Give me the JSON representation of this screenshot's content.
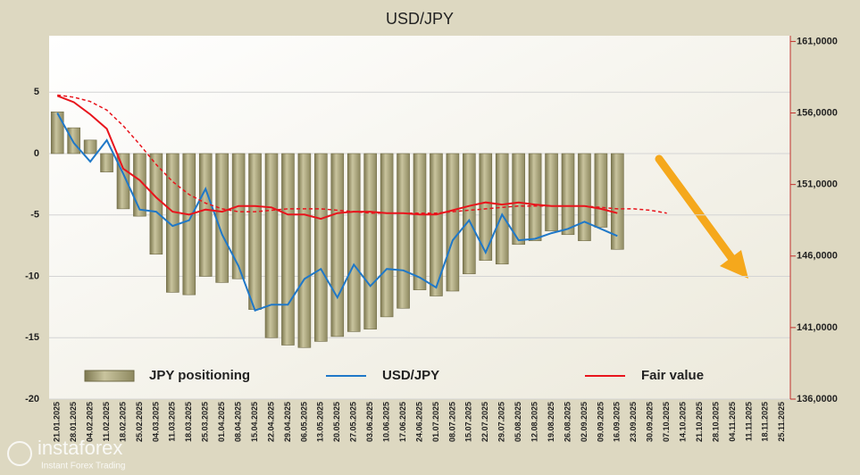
{
  "chart_data": {
    "type": "bar",
    "title": "USD/JPY",
    "categories": [
      "21.01.2025",
      "28.01.2025",
      "04.02.2025",
      "11.02.2025",
      "18.02.2025",
      "25.02.2025",
      "04.03.2025",
      "11.03.2025",
      "18.03.2025",
      "25.03.2025",
      "01.04.2025",
      "08.04.2025",
      "15.04.2025",
      "22.04.2025",
      "29.04.2025",
      "06.05.2025",
      "13.05.2025",
      "20.05.2025",
      "27.05.2025",
      "03.06.2025",
      "10.06.2025",
      "17.06.2025",
      "24.06.2025",
      "01.07.2025",
      "08.07.2025",
      "15.07.2025",
      "22.07.2025",
      "29.07.2025",
      "05.08.2025",
      "12.08.2025",
      "19.08.2025",
      "26.08.2025",
      "02.09.2025",
      "09.09.2025",
      "16.09.2025",
      "23.09.2025",
      "30.09.2025",
      "07.10.2025",
      "14.10.2025",
      "21.10.2025",
      "28.10.2025",
      "04.11.2025",
      "11.11.2025",
      "18.11.2025",
      "25.11.2025"
    ],
    "series": [
      {
        "name": "JPY positioning",
        "type": "bar",
        "color": "#a9a37c",
        "values": [
          3.4,
          2.1,
          1.1,
          -1.5,
          -4.5,
          -5.1,
          -8.2,
          -11.3,
          -11.5,
          -10.0,
          -10.5,
          -10.2,
          -12.7,
          -15.0,
          -15.6,
          -15.8,
          -15.3,
          -14.9,
          -14.5,
          -14.3,
          -13.3,
          -12.6,
          -11.1,
          -11.6,
          -11.2,
          -9.8,
          -8.7,
          -9.0,
          -7.4,
          -7.1,
          -6.3,
          -6.6,
          -7.1,
          -6.0,
          -7.8,
          null,
          null,
          null,
          null,
          null,
          null,
          null,
          null,
          null,
          null
        ]
      },
      {
        "name": "USD/JPY",
        "type": "line",
        "axis": "y2",
        "color": "#1f78c8",
        "values": [
          156.0,
          153.9,
          152.6,
          154.1,
          151.75,
          149.25,
          149.1,
          148.1,
          148.5,
          150.7,
          147.5,
          145.3,
          142.2,
          142.6,
          142.6,
          144.4,
          145.1,
          143.1,
          145.4,
          143.9,
          145.1,
          145.0,
          144.5,
          143.8,
          147.1,
          148.5,
          146.25,
          148.9,
          147.1,
          147.2,
          147.6,
          147.9,
          148.4,
          147.9,
          147.4,
          null,
          null,
          null,
          null,
          null,
          null,
          null,
          null,
          null,
          null
        ]
      },
      {
        "name": "Fair value",
        "type": "line",
        "axis": "y2",
        "color": "#e8141c",
        "values": [
          157.2,
          156.75,
          155.9,
          154.9,
          152.1,
          151.3,
          150.1,
          149.1,
          148.9,
          149.25,
          149.1,
          149.5,
          149.5,
          149.4,
          148.9,
          148.9,
          148.6,
          149.0,
          149.1,
          149.1,
          149.0,
          149.0,
          148.9,
          148.9,
          149.2,
          149.5,
          149.75,
          149.6,
          149.75,
          149.6,
          149.5,
          149.5,
          149.5,
          149.3,
          149.0,
          null,
          null,
          null,
          null,
          null,
          null,
          null,
          null,
          null,
          null
        ]
      },
      {
        "type": "line",
        "axis": "y2",
        "color": "#e8141c",
        "dashed": true,
        "values": [
          157.25,
          157.1,
          156.8,
          156.2,
          155.1,
          153.8,
          152.4,
          151.2,
          150.3,
          149.7,
          149.3,
          149.1,
          149.1,
          149.2,
          149.3,
          149.3,
          149.3,
          149.2,
          149.1,
          149.0,
          149.0,
          149.0,
          149.0,
          149.0,
          149.1,
          149.2,
          149.3,
          149.4,
          149.5,
          149.5,
          149.5,
          149.5,
          149.5,
          149.4,
          149.3,
          149.3,
          149.2,
          149.0,
          null,
          null,
          null,
          null,
          null,
          null,
          null
        ]
      }
    ],
    "ylim": [
      -20,
      9.6
    ],
    "yticks": [
      5,
      0,
      -5,
      -10,
      -15,
      -20
    ],
    "y2lim": [
      136,
      161.4
    ],
    "y2ticks": [
      {
        "value": 161,
        "label": "161,0000"
      },
      {
        "value": 156,
        "label": "156,0000"
      },
      {
        "value": 151,
        "label": "151,0000"
      },
      {
        "value": 146,
        "label": "146,0000"
      },
      {
        "value": 141,
        "label": "141,0000"
      },
      {
        "value": 136,
        "label": "136,0000"
      }
    ],
    "grid": true,
    "watermark": {
      "brand": "instaforex",
      "tagline": "Instant Forex Trading"
    }
  }
}
